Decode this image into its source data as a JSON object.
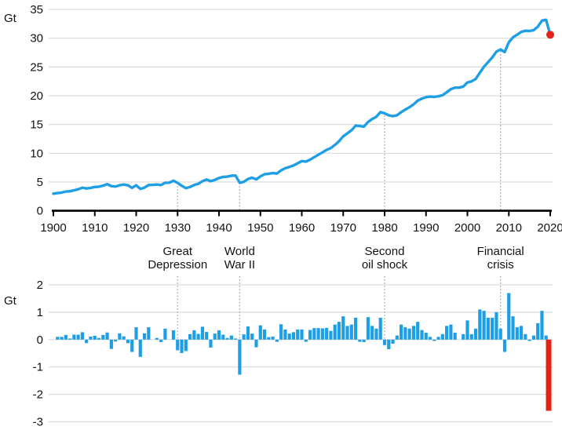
{
  "colors": {
    "series_blue": "#1E9FE5",
    "highlight_red": "#E2231A",
    "gridline": "#D9D9D9",
    "event_line": "#9A9A9A",
    "axis": "#000000",
    "text": "#111111"
  },
  "chart_data": [
    {
      "id": "emissions-line",
      "type": "line",
      "ylabel": "Gt",
      "ylim": [
        0,
        35
      ],
      "yticks": [
        0,
        5,
        10,
        15,
        20,
        25,
        30,
        35
      ],
      "xticks": [
        1900,
        1910,
        1920,
        1930,
        1940,
        1950,
        1960,
        1970,
        1980,
        1990,
        2000,
        2010,
        2020
      ],
      "grid": "horizontal",
      "start_year": 1900,
      "series": [
        {
          "name": "emissions_gt",
          "values": [
            2.97,
            3.07,
            3.17,
            3.34,
            3.38,
            3.56,
            3.74,
            4.01,
            3.88,
            3.99,
            4.13,
            4.19,
            4.36,
            4.62,
            4.28,
            4.21,
            4.44,
            4.56,
            4.43,
            3.98,
            4.43,
            3.8,
            4.03,
            4.48,
            4.5,
            4.56,
            4.47,
            4.87,
            4.89,
            5.23,
            4.84,
            4.35,
            3.93,
            4.13,
            4.47,
            4.68,
            5.15,
            5.43,
            5.14,
            5.36,
            5.7,
            5.88,
            5.94,
            6.09,
            6.13,
            4.85,
            5.04,
            5.52,
            5.74,
            5.46,
            5.98,
            6.35,
            6.44,
            6.55,
            6.47,
            7.03,
            7.4,
            7.62,
            7.89,
            8.26,
            8.63,
            8.55,
            8.9,
            9.32,
            9.74,
            10.15,
            10.58,
            10.9,
            11.45,
            12.1,
            12.95,
            13.45,
            14.0,
            14.8,
            14.72,
            14.63,
            15.45,
            15.95,
            16.35,
            17.15,
            16.95,
            16.6,
            16.45,
            16.6,
            17.15,
            17.6,
            18.0,
            18.5,
            19.15,
            19.5,
            19.75,
            19.85,
            19.8,
            19.9,
            20.1,
            20.6,
            21.15,
            21.4,
            21.4,
            21.6,
            22.3,
            22.5,
            22.9,
            24.0,
            25.05,
            25.85,
            26.65,
            27.65,
            28.05,
            27.6,
            29.3,
            30.15,
            30.6,
            31.1,
            31.3,
            31.25,
            31.4,
            32.0,
            33.05,
            33.2,
            30.6
          ]
        }
      ],
      "end_point": {
        "year": 2020,
        "value": 30.6,
        "highlighted": true
      }
    },
    {
      "id": "annual-change-bars",
      "type": "bar",
      "ylabel": "Gt",
      "ylim": [
        -3,
        2
      ],
      "yticks": [
        2,
        1,
        0,
        -1,
        -2,
        -3
      ],
      "grid": "horizontal",
      "start_year": 1901,
      "values": [
        0.1,
        0.1,
        0.17,
        0.04,
        0.18,
        0.18,
        0.27,
        -0.13,
        0.11,
        0.14,
        0.06,
        0.17,
        0.26,
        -0.34,
        -0.07,
        0.23,
        0.12,
        -0.13,
        -0.45,
        0.45,
        -0.63,
        0.23,
        0.45,
        0.02,
        0.06,
        -0.09,
        0.4,
        0.02,
        0.34,
        -0.39,
        -0.49,
        -0.42,
        0.2,
        0.34,
        0.21,
        0.47,
        0.28,
        -0.29,
        0.22,
        0.34,
        0.18,
        0.06,
        0.15,
        0.04,
        -1.28,
        0.19,
        0.48,
        0.22,
        -0.28,
        0.52,
        0.37,
        0.09,
        0.11,
        -0.08,
        0.56,
        0.37,
        0.22,
        0.27,
        0.37,
        0.37,
        -0.08,
        0.35,
        0.42,
        0.42,
        0.41,
        0.43,
        0.32,
        0.55,
        0.65,
        0.85,
        0.5,
        0.55,
        0.8,
        -0.08,
        -0.09,
        0.82,
        0.5,
        0.4,
        0.8,
        -0.2,
        -0.35,
        -0.15,
        0.15,
        0.55,
        0.45,
        0.4,
        0.5,
        0.65,
        0.35,
        0.25,
        0.1,
        -0.05,
        0.1,
        0.2,
        0.5,
        0.55,
        0.25,
        0.0,
        0.2,
        0.7,
        0.2,
        0.4,
        1.1,
        1.05,
        0.8,
        0.8,
        1.0,
        0.4,
        -0.45,
        1.7,
        0.85,
        0.45,
        0.5,
        0.2,
        -0.05,
        0.15,
        0.6,
        1.05,
        0.15,
        -2.6
      ],
      "highlight_year": 2020,
      "highlight_value": -2.6
    }
  ],
  "events": [
    {
      "name": "Great Depression",
      "label_lines": [
        "Great",
        "Depression"
      ],
      "year": 1930
    },
    {
      "name": "World War II",
      "label_lines": [
        "World",
        "War II"
      ],
      "year": 1945
    },
    {
      "name": "Second oil shock",
      "label_lines": [
        "Second",
        "oil shock"
      ],
      "year": 1980
    },
    {
      "name": "Financial crisis",
      "label_lines": [
        "Financial",
        "crisis"
      ],
      "year": 2008
    }
  ]
}
